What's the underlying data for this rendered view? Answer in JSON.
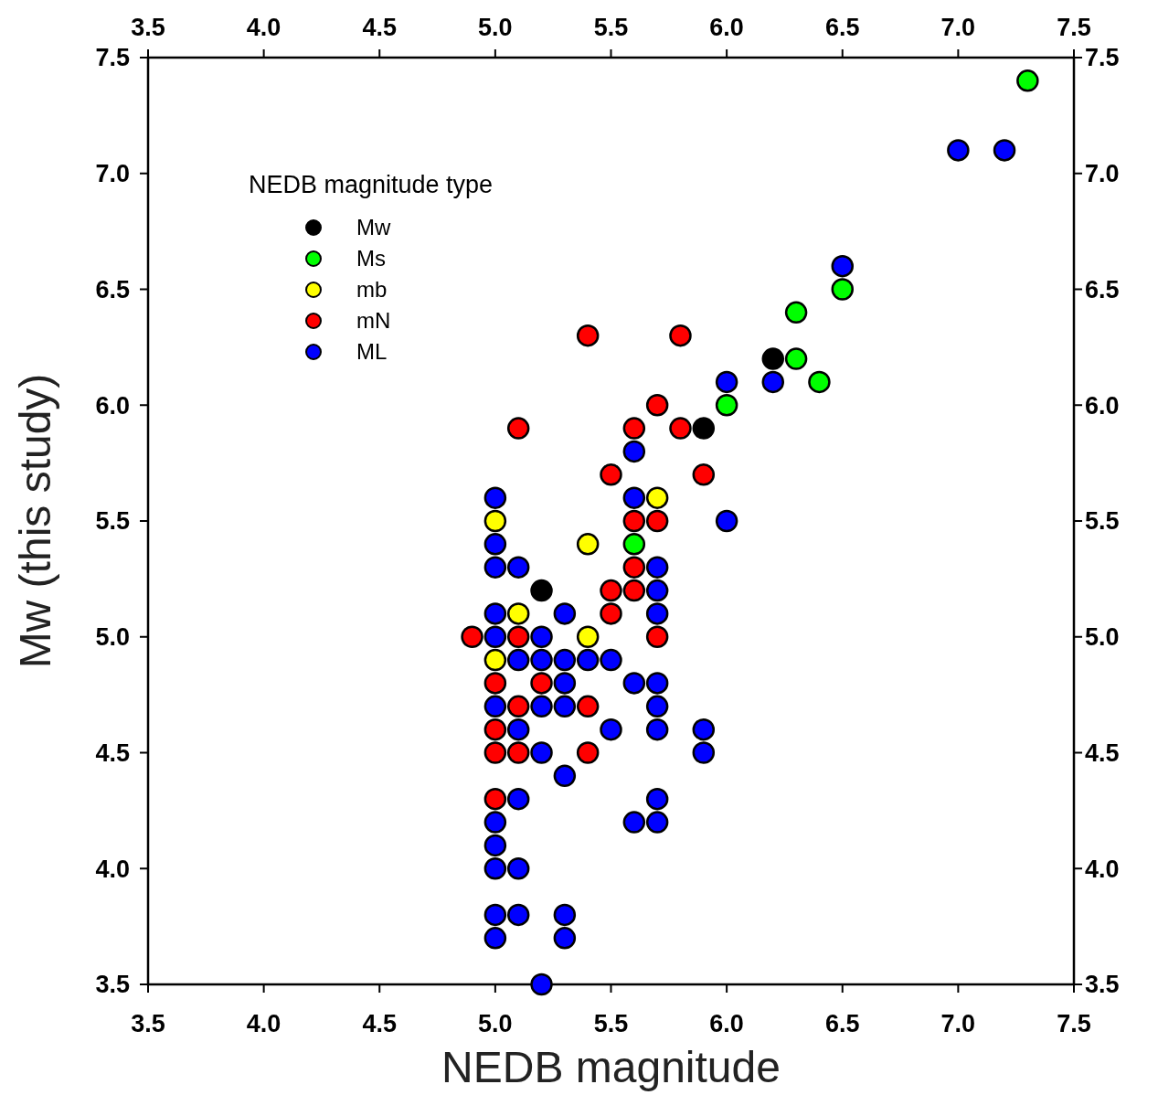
{
  "chart_data": {
    "type": "scatter",
    "xlabel": "NEDB magnitude",
    "ylabel": "Mw (this study)",
    "legend_title": "NEDB magnitude type",
    "legend": "top left",
    "marker": "circle",
    "xlim": [
      3.5,
      7.5
    ],
    "xticks": [
      3.5,
      {
        "value": 4,
        "label": "4.0"
      },
      4.5,
      {
        "value": 5,
        "label": "5.0"
      },
      5.5,
      {
        "value": 6,
        "label": "6.0"
      },
      6.5,
      {
        "value": 7,
        "label": "7.0"
      },
      7.5
    ],
    "x2lim": [
      3.5,
      7.5
    ],
    "x2ticks": [
      3.5,
      {
        "value": 4,
        "label": "4.0"
      },
      4.5,
      {
        "value": 5,
        "label": "5.0"
      },
      5.5,
      {
        "value": 6,
        "label": "6.0"
      },
      6.5,
      {
        "value": 7,
        "label": "7.0"
      },
      7.5
    ],
    "ylim": [
      3.5,
      7.5
    ],
    "yticks": [
      3.5,
      {
        "value": 4,
        "label": "4.0"
      },
      4.5,
      {
        "value": 5,
        "label": "5.0"
      },
      5.5,
      {
        "value": 6,
        "label": "6.0"
      },
      6.5,
      {
        "value": 7,
        "label": "7.0"
      },
      7.5
    ],
    "y2lim": [
      3.5,
      7.5
    ],
    "y2ticks": [
      3.5,
      {
        "value": 4,
        "label": "4.0"
      },
      4.5,
      {
        "value": 5,
        "label": "5.0"
      },
      5.5,
      {
        "value": 6,
        "label": "6.0"
      },
      6.5,
      {
        "value": 7,
        "label": "7.0"
      },
      7.5
    ],
    "series": [
      {
        "name": "Mw",
        "color": "#000000",
        "x": [
          5.2,
          5.9,
          6.2
        ],
        "values": [
          5.2,
          5.9,
          6.2
        ]
      },
      {
        "name": "Ms",
        "color": "#00ff00",
        "x": [
          5.6,
          6.0,
          6.3,
          6.3,
          6.4,
          6.5,
          7.3
        ],
        "values": [
          5.4,
          6.0,
          6.2,
          6.4,
          6.1,
          6.5,
          7.4
        ]
      },
      {
        "name": "mb",
        "color": "#ffff00",
        "x": [
          5.0,
          5.4,
          5.7,
          5.1,
          5.4,
          5.0
        ],
        "values": [
          5.5,
          5.4,
          5.6,
          5.1,
          5.0,
          4.9
        ]
      },
      {
        "name": "mN",
        "color": "#ff0000",
        "x": [
          5.4,
          5.8,
          5.7,
          5.1,
          5.6,
          5.8,
          5.5,
          5.9,
          5.6,
          5.7,
          5.6,
          5.5,
          5.6,
          5.5,
          4.9,
          5.1,
          5.7,
          5.0,
          5.2,
          5.1,
          5.4,
          5.0,
          5.0,
          5.1,
          5.4,
          5.0
        ],
        "values": [
          6.3,
          6.3,
          6.0,
          5.9,
          5.9,
          5.9,
          5.7,
          5.7,
          5.5,
          5.5,
          5.3,
          5.2,
          5.2,
          5.1,
          5.0,
          5.0,
          5.0,
          4.8,
          4.8,
          4.7,
          4.7,
          4.6,
          4.5,
          4.5,
          4.5,
          4.3
        ]
      },
      {
        "name": "ML",
        "color": "#0000ff",
        "x": [
          6.0,
          6.2,
          6.5,
          7.0,
          7.2,
          5.6,
          5.0,
          5.6,
          6.0,
          5.0,
          5.0,
          5.1,
          5.7,
          5.7,
          5.0,
          5.3,
          5.7,
          5.0,
          5.2,
          5.1,
          5.2,
          5.3,
          5.4,
          5.5,
          5.3,
          5.6,
          5.7,
          5.0,
          5.2,
          5.3,
          5.7,
          5.1,
          5.5,
          5.7,
          5.9,
          5.2,
          5.9,
          5.3,
          5.1,
          5.7,
          5.0,
          5.6,
          5.7,
          5.0,
          5.0,
          5.1,
          5.0,
          5.1,
          5.3,
          5.0,
          5.3,
          5.2
        ],
        "values": [
          6.1,
          6.1,
          6.6,
          7.1,
          7.1,
          5.8,
          5.6,
          5.6,
          5.5,
          5.4,
          5.3,
          5.3,
          5.3,
          5.2,
          5.1,
          5.1,
          5.1,
          5.0,
          5.0,
          4.9,
          4.9,
          4.9,
          4.9,
          4.9,
          4.8,
          4.8,
          4.8,
          4.7,
          4.7,
          4.7,
          4.7,
          4.6,
          4.6,
          4.6,
          4.6,
          4.5,
          4.5,
          4.4,
          4.3,
          4.3,
          4.2,
          4.2,
          4.2,
          4.1,
          4.0,
          4.0,
          3.8,
          3.8,
          3.8,
          3.7,
          3.7,
          3.5
        ]
      }
    ]
  }
}
